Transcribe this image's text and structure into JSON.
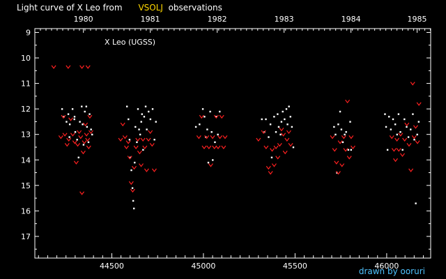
{
  "header": {
    "title_prefix": "Light curve of X Leo from",
    "source": "VSOLJ",
    "title_suffix": "observations"
  },
  "credit": "drawn by ooruri",
  "colors": {
    "background": "#000000",
    "axes": "#ffffff",
    "visual_obs": "#ffffff",
    "fainter_than": "#ff2020",
    "source_label": "#ffd800",
    "credit": "#4fc3ff"
  },
  "chart_data": {
    "type": "scatter",
    "title": "Light curve of X Leo from VSOLJ observations",
    "annotation": "X Leo (UGSS)",
    "xlabel": "",
    "ylabel": "",
    "xlim": [
      44080,
      46240
    ],
    "ylim": [
      8.85,
      17.85
    ],
    "y_inverted": true,
    "x_ticks": [
      44500,
      45000,
      45500,
      46000
    ],
    "x_tick_labels": [
      "44500",
      "45000",
      "45500",
      "46000"
    ],
    "y_ticks": [
      9,
      10,
      11,
      12,
      13,
      14,
      15,
      16,
      17
    ],
    "y_tick_labels": [
      "9",
      "10",
      "11",
      "12",
      "13",
      "14",
      "15",
      "16",
      "17"
    ],
    "year_ticks": [
      {
        "label": "1980",
        "x": 44345
      },
      {
        "label": "1981",
        "x": 44710
      },
      {
        "label": "1982",
        "x": 45075
      },
      {
        "label": "1983",
        "x": 45440
      },
      {
        "label": "1984",
        "x": 45805
      },
      {
        "label": "1985",
        "x": 46166
      }
    ],
    "series": [
      {
        "marker": "dot",
        "color": "#ffffff",
        "points": [
          [
            44228,
            12.0
          ],
          [
            44238,
            12.3
          ],
          [
            44252,
            12.5
          ],
          [
            44262,
            12.2
          ],
          [
            44270,
            12.6
          ],
          [
            44285,
            12.0
          ],
          [
            44295,
            12.4
          ],
          [
            44300,
            12.9
          ],
          [
            44310,
            13.2
          ],
          [
            44318,
            13.9
          ],
          [
            44325,
            12.5
          ],
          [
            44335,
            11.9
          ],
          [
            44340,
            12.6
          ],
          [
            44345,
            13.4
          ],
          [
            44352,
            12.1
          ],
          [
            44360,
            11.9
          ],
          [
            44364,
            12.7
          ],
          [
            44372,
            13.3
          ],
          [
            44378,
            12.2
          ],
          [
            44386,
            12.8
          ],
          [
            44392,
            13.0
          ],
          [
            44268,
            13.1
          ],
          [
            44296,
            12.3
          ],
          [
            44582,
            11.9
          ],
          [
            44590,
            12.4
          ],
          [
            44596,
            13.2
          ],
          [
            44600,
            13.9
          ],
          [
            44606,
            14.4
          ],
          [
            44612,
            15.1
          ],
          [
            44616,
            15.6
          ],
          [
            44620,
            15.9
          ],
          [
            44624,
            14.1
          ],
          [
            44628,
            12.7
          ],
          [
            44636,
            13.3
          ],
          [
            44642,
            12.0
          ],
          [
            44648,
            12.8
          ],
          [
            44654,
            13.0
          ],
          [
            44660,
            12.5
          ],
          [
            44664,
            12.2
          ],
          [
            44670,
            13.6
          ],
          [
            44676,
            12.3
          ],
          [
            44684,
            11.9
          ],
          [
            44690,
            12.8
          ],
          [
            44700,
            12.1
          ],
          [
            44710,
            12.4
          ],
          [
            44722,
            12.0
          ],
          [
            44732,
            13.2
          ],
          [
            44740,
            12.5
          ],
          [
            44958,
            12.7
          ],
          [
            44978,
            12.6
          ],
          [
            44996,
            12.0
          ],
          [
            45005,
            12.3
          ],
          [
            45012,
            13.1
          ],
          [
            45020,
            12.8
          ],
          [
            45026,
            14.1
          ],
          [
            45036,
            12.1
          ],
          [
            45044,
            12.9
          ],
          [
            45050,
            14.0
          ],
          [
            45062,
            13.3
          ],
          [
            45068,
            12.3
          ],
          [
            45078,
            13.0
          ],
          [
            45088,
            12.1
          ],
          [
            45318,
            12.4
          ],
          [
            45332,
            12.9
          ],
          [
            45340,
            12.4
          ],
          [
            45355,
            13.1
          ],
          [
            45365,
            12.6
          ],
          [
            45372,
            13.9
          ],
          [
            45385,
            12.3
          ],
          [
            45395,
            12.9
          ],
          [
            45404,
            12.2
          ],
          [
            45410,
            12.7
          ],
          [
            45420,
            13.0
          ],
          [
            45425,
            12.5
          ],
          [
            45432,
            12.1
          ],
          [
            45442,
            12.4
          ],
          [
            45452,
            12.0
          ],
          [
            45458,
            12.6
          ],
          [
            45466,
            11.9
          ],
          [
            45474,
            12.3
          ],
          [
            45482,
            12.7
          ],
          [
            45490,
            13.5
          ],
          [
            45712,
            12.7
          ],
          [
            45720,
            13.0
          ],
          [
            45728,
            14.5
          ],
          [
            45735,
            12.6
          ],
          [
            45745,
            12.1
          ],
          [
            45752,
            12.8
          ],
          [
            45760,
            13.3
          ],
          [
            45770,
            13.0
          ],
          [
            45778,
            12.9
          ],
          [
            45790,
            13.6
          ],
          [
            45800,
            12.5
          ],
          [
            45805,
            13.6
          ],
          [
            45990,
            12.2
          ],
          [
            45996,
            12.7
          ],
          [
            46004,
            13.6
          ],
          [
            46012,
            12.3
          ],
          [
            46022,
            12.8
          ],
          [
            46034,
            12.4
          ],
          [
            46046,
            12.6
          ],
          [
            46056,
            13.0
          ],
          [
            46064,
            12.2
          ],
          [
            46074,
            12.9
          ],
          [
            46086,
            13.6
          ],
          [
            46096,
            12.4
          ],
          [
            46108,
            12.7
          ],
          [
            46118,
            13.1
          ],
          [
            46130,
            12.8
          ],
          [
            46142,
            12.2
          ],
          [
            46150,
            13.2
          ],
          [
            46158,
            15.7
          ],
          [
            46166,
            13.0
          ],
          [
            46174,
            12.5
          ]
        ]
      },
      {
        "marker": "v",
        "color": "#ff2020",
        "points": [
          [
            44183,
            10.35
          ],
          [
            44262,
            10.35
          ],
          [
            44337,
            10.35
          ],
          [
            44370,
            10.35
          ],
          [
            44222,
            13.1
          ],
          [
            44236,
            12.3
          ],
          [
            44244,
            13.0
          ],
          [
            44256,
            13.4
          ],
          [
            44265,
            13.2
          ],
          [
            44276,
            12.4
          ],
          [
            44287,
            13.0
          ],
          [
            44298,
            13.3
          ],
          [
            44306,
            14.1
          ],
          [
            44314,
            13.4
          ],
          [
            44322,
            12.9
          ],
          [
            44330,
            13.1
          ],
          [
            44337,
            15.3
          ],
          [
            44344,
            13.7
          ],
          [
            44350,
            13.3
          ],
          [
            44356,
            12.6
          ],
          [
            44362,
            13.0
          ],
          [
            44368,
            13.2
          ],
          [
            44374,
            13.5
          ],
          [
            44380,
            12.3
          ],
          [
            44386,
            12.9
          ],
          [
            44548,
            13.2
          ],
          [
            44560,
            12.6
          ],
          [
            44572,
            13.1
          ],
          [
            44580,
            13.5
          ],
          [
            44590,
            13.3
          ],
          [
            44598,
            13.9
          ],
          [
            44606,
            14.9
          ],
          [
            44614,
            15.2
          ],
          [
            44622,
            14.3
          ],
          [
            44632,
            13.5
          ],
          [
            44642,
            13.2
          ],
          [
            44652,
            13.7
          ],
          [
            44660,
            14.2
          ],
          [
            44670,
            13.2
          ],
          [
            44680,
            13.5
          ],
          [
            44690,
            14.4
          ],
          [
            44700,
            13.2
          ],
          [
            44710,
            12.9
          ],
          [
            44720,
            13.4
          ],
          [
            44732,
            14.4
          ],
          [
            44975,
            13.1
          ],
          [
            44990,
            12.3
          ],
          [
            45004,
            13.5
          ],
          [
            45018,
            13.1
          ],
          [
            45030,
            13.5
          ],
          [
            45040,
            14.2
          ],
          [
            45050,
            13.1
          ],
          [
            45060,
            13.5
          ],
          [
            45070,
            12.3
          ],
          [
            45080,
            13.5
          ],
          [
            45090,
            13.1
          ],
          [
            45100,
            12.3
          ],
          [
            45110,
            13.5
          ],
          [
            45118,
            13.1
          ],
          [
            45300,
            13.2
          ],
          [
            45328,
            12.9
          ],
          [
            45342,
            13.5
          ],
          [
            45355,
            14.3
          ],
          [
            45366,
            14.5
          ],
          [
            45375,
            13.6
          ],
          [
            45386,
            14.2
          ],
          [
            45396,
            13.5
          ],
          [
            45406,
            13.9
          ],
          [
            45416,
            13.4
          ],
          [
            45426,
            12.8
          ],
          [
            45436,
            13.0
          ],
          [
            45446,
            13.7
          ],
          [
            45456,
            13.2
          ],
          [
            45466,
            12.9
          ],
          [
            45476,
            13.4
          ],
          [
            45704,
            13.1
          ],
          [
            45716,
            13.6
          ],
          [
            45726,
            14.1
          ],
          [
            45736,
            14.5
          ],
          [
            45746,
            13.3
          ],
          [
            45756,
            14.2
          ],
          [
            45766,
            13.1
          ],
          [
            45776,
            13.6
          ],
          [
            45786,
            11.7
          ],
          [
            45796,
            13.9
          ],
          [
            45806,
            13.1
          ],
          [
            45816,
            13.5
          ],
          [
            46028,
            13.1
          ],
          [
            46040,
            13.6
          ],
          [
            46048,
            14.0
          ],
          [
            46056,
            13.2
          ],
          [
            46066,
            13.6
          ],
          [
            46076,
            13.0
          ],
          [
            46086,
            13.8
          ],
          [
            46098,
            13.2
          ],
          [
            46110,
            12.6
          ],
          [
            46122,
            13.4
          ],
          [
            46132,
            14.4
          ],
          [
            46142,
            11.0
          ],
          [
            46150,
            13.1
          ],
          [
            46158,
            12.7
          ],
          [
            46168,
            13.3
          ],
          [
            46176,
            11.8
          ]
        ]
      }
    ]
  }
}
